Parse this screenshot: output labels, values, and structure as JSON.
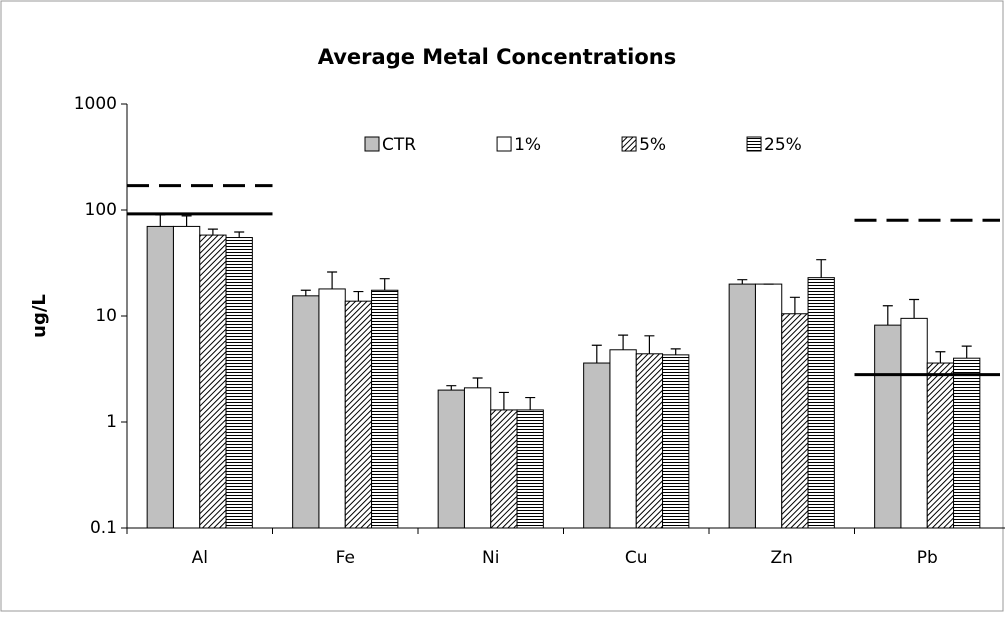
{
  "chart_data": {
    "type": "bar",
    "title": "Average Metal Concentrations",
    "y_label": "ug/L",
    "categories": [
      "Al",
      "Fe",
      "Ni",
      "Cu",
      "Zn",
      "Pb"
    ],
    "series": [
      {
        "name": "CTR",
        "color": "#c0c0c0",
        "pattern": "solid",
        "values": [
          70,
          15.5,
          2.0,
          3.6,
          20,
          8.2
        ],
        "errors": [
          20,
          2,
          0.2,
          1.7,
          2,
          4.3
        ]
      },
      {
        "name": "1%",
        "color": "#ffffff",
        "pattern": "solid",
        "values": [
          70,
          18,
          2.1,
          4.8,
          20,
          9.5
        ],
        "errors": [
          18,
          8,
          0.5,
          1.8,
          0,
          4.8
        ]
      },
      {
        "name": "5%",
        "color": "#000000",
        "pattern": "diagonal",
        "values": [
          58,
          13.8,
          1.3,
          4.4,
          10.5,
          3.6
        ],
        "errors": [
          8,
          3.2,
          0.6,
          2.1,
          4.5,
          1
        ]
      },
      {
        "name": "25%",
        "color": "#000000",
        "pattern": "horizontal",
        "values": [
          55,
          17.5,
          1.3,
          4.3,
          23,
          4.0
        ],
        "errors": [
          7,
          5,
          0.4,
          0.6,
          11,
          1.2
        ]
      }
    ],
    "reference_lines": [
      {
        "category": 0,
        "value": 92,
        "style": "solid"
      },
      {
        "category": 0,
        "value": 170,
        "style": "dashed"
      },
      {
        "category": 5,
        "value": 80,
        "style": "dashed"
      },
      {
        "category": 5,
        "value": 2.8,
        "style": "solid"
      }
    ],
    "log_scale": true,
    "ylim": [
      0.1,
      1000
    ],
    "yticks": [
      0.1,
      1,
      10,
      100,
      1000
    ],
    "legend": "top"
  }
}
